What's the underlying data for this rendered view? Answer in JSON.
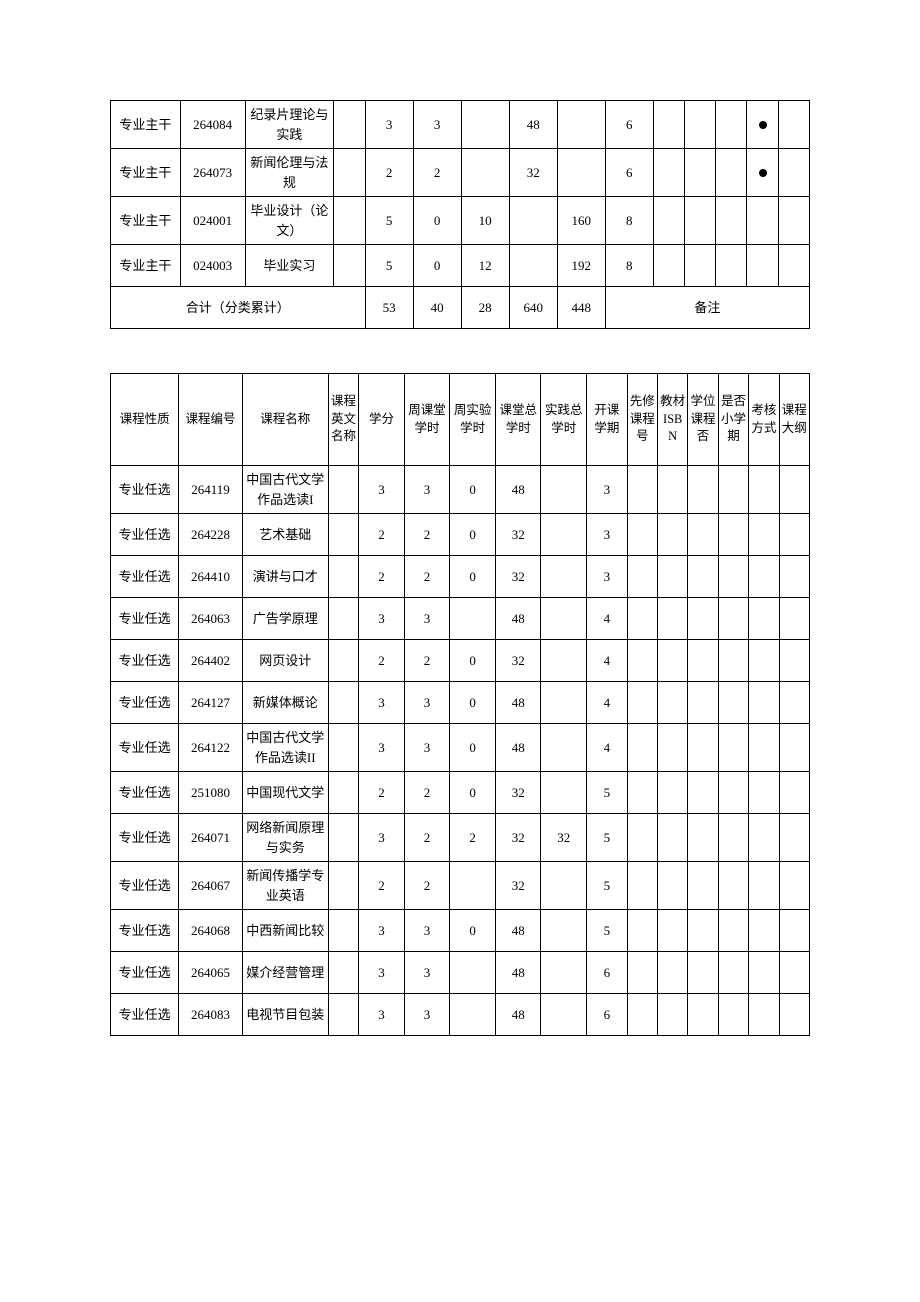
{
  "colors": {
    "page_bg": "#ffffff",
    "text": "#000000",
    "border": "#000000",
    "dot": "#000000"
  },
  "typography": {
    "font_family": "SimSun",
    "base_size_pt": 10
  },
  "table1": {
    "rows": [
      {
        "c1": "专业主干",
        "c2": "264084",
        "c3": "纪录片理论与实践",
        "c4": "",
        "c5": "3",
        "c6": "3",
        "c7": "",
        "c8": "48",
        "c9": "",
        "c10": "6",
        "c11": "",
        "c12": "",
        "c13": "",
        "c14": "●",
        "c15": ""
      },
      {
        "c1": "专业主干",
        "c2": "264073",
        "c3": "新闻伦理与法规",
        "c4": "",
        "c5": "2",
        "c6": "2",
        "c7": "",
        "c8": "32",
        "c9": "",
        "c10": "6",
        "c11": "",
        "c12": "",
        "c13": "",
        "c14": "●",
        "c15": ""
      },
      {
        "c1": "专业主干",
        "c2": "024001",
        "c3": "毕业设计（论文）",
        "c4": "",
        "c5": "5",
        "c6": "0",
        "c7": "10",
        "c8": "",
        "c9": "160",
        "c10": "8",
        "c11": "",
        "c12": "",
        "c13": "",
        "c14": "",
        "c15": ""
      },
      {
        "c1": "专业主干",
        "c2": "024003",
        "c3": "毕业实习",
        "c4": "",
        "c5": "5",
        "c6": "0",
        "c7": "12",
        "c8": "",
        "c9": "192",
        "c10": "8",
        "c11": "",
        "c12": "",
        "c13": "",
        "c14": "",
        "c15": ""
      }
    ],
    "totals": {
      "label": "合计（分类累计）",
      "c5": "53",
      "c6": "40",
      "c7": "28",
      "c8": "640",
      "c9": "448",
      "note": "备注"
    }
  },
  "table2": {
    "headers": {
      "c1": "课程性质",
      "c2": "课程编号",
      "c3": "课程名称",
      "c4": "课程英文名称",
      "c5": "学分",
      "c6": "周课堂学时",
      "c7": "周实验学时",
      "c8": "课堂总学时",
      "c9": "实践总学时",
      "c10": "开课学期",
      "c11": "先修课程号",
      "c12": "教材ISBN",
      "c13": "学位课程否",
      "c14": "是否小学期",
      "c15": "考核方式",
      "c16": "课程大纲"
    },
    "rows": [
      {
        "c1": "专业任选",
        "c2": "264119",
        "c3": "中国古代文学作品选读I",
        "c4": "",
        "c5": "3",
        "c6": "3",
        "c7": "0",
        "c8": "48",
        "c9": "",
        "c10": "3"
      },
      {
        "c1": "专业任选",
        "c2": "264228",
        "c3": "艺术基础",
        "c4": "",
        "c5": "2",
        "c6": "2",
        "c7": "0",
        "c8": "32",
        "c9": "",
        "c10": "3"
      },
      {
        "c1": "专业任选",
        "c2": "264410",
        "c3": "演讲与口才",
        "c4": "",
        "c5": "2",
        "c6": "2",
        "c7": "0",
        "c8": "32",
        "c9": "",
        "c10": "3"
      },
      {
        "c1": "专业任选",
        "c2": "264063",
        "c3": "广告学原理",
        "c4": "",
        "c5": "3",
        "c6": "3",
        "c7": "",
        "c8": "48",
        "c9": "",
        "c10": "4"
      },
      {
        "c1": "专业任选",
        "c2": "264402",
        "c3": "网页设计",
        "c4": "",
        "c5": "2",
        "c6": "2",
        "c7": "0",
        "c8": "32",
        "c9": "",
        "c10": "4"
      },
      {
        "c1": "专业任选",
        "c2": "264127",
        "c3": "新媒体概论",
        "c4": "",
        "c5": "3",
        "c6": "3",
        "c7": "0",
        "c8": "48",
        "c9": "",
        "c10": "4"
      },
      {
        "c1": "专业任选",
        "c2": "264122",
        "c3": "中国古代文学作品选读II",
        "c4": "",
        "c5": "3",
        "c6": "3",
        "c7": "0",
        "c8": "48",
        "c9": "",
        "c10": "4"
      },
      {
        "c1": "专业任选",
        "c2": "251080",
        "c3": "中国现代文学",
        "c4": "",
        "c5": "2",
        "c6": "2",
        "c7": "0",
        "c8": "32",
        "c9": "",
        "c10": "5"
      },
      {
        "c1": "专业任选",
        "c2": "264071",
        "c3": "网络新闻原理与实务",
        "c4": "",
        "c5": "3",
        "c6": "2",
        "c7": "2",
        "c8": "32",
        "c9": "32",
        "c10": "5"
      },
      {
        "c1": "专业任选",
        "c2": "264067",
        "c3": "新闻传播学专业英语",
        "c4": "",
        "c5": "2",
        "c6": "2",
        "c7": "",
        "c8": "32",
        "c9": "",
        "c10": "5"
      },
      {
        "c1": "专业任选",
        "c2": "264068",
        "c3": "中西新闻比较",
        "c4": "",
        "c5": "3",
        "c6": "3",
        "c7": "0",
        "c8": "48",
        "c9": "",
        "c10": "5"
      },
      {
        "c1": "专业任选",
        "c2": "264065",
        "c3": "媒介经营管理",
        "c4": "",
        "c5": "3",
        "c6": "3",
        "c7": "",
        "c8": "48",
        "c9": "",
        "c10": "6"
      },
      {
        "c1": "专业任选",
        "c2": "264083",
        "c3": "电视节目包装",
        "c4": "",
        "c5": "3",
        "c6": "3",
        "c7": "",
        "c8": "48",
        "c9": "",
        "c10": "6"
      }
    ]
  }
}
